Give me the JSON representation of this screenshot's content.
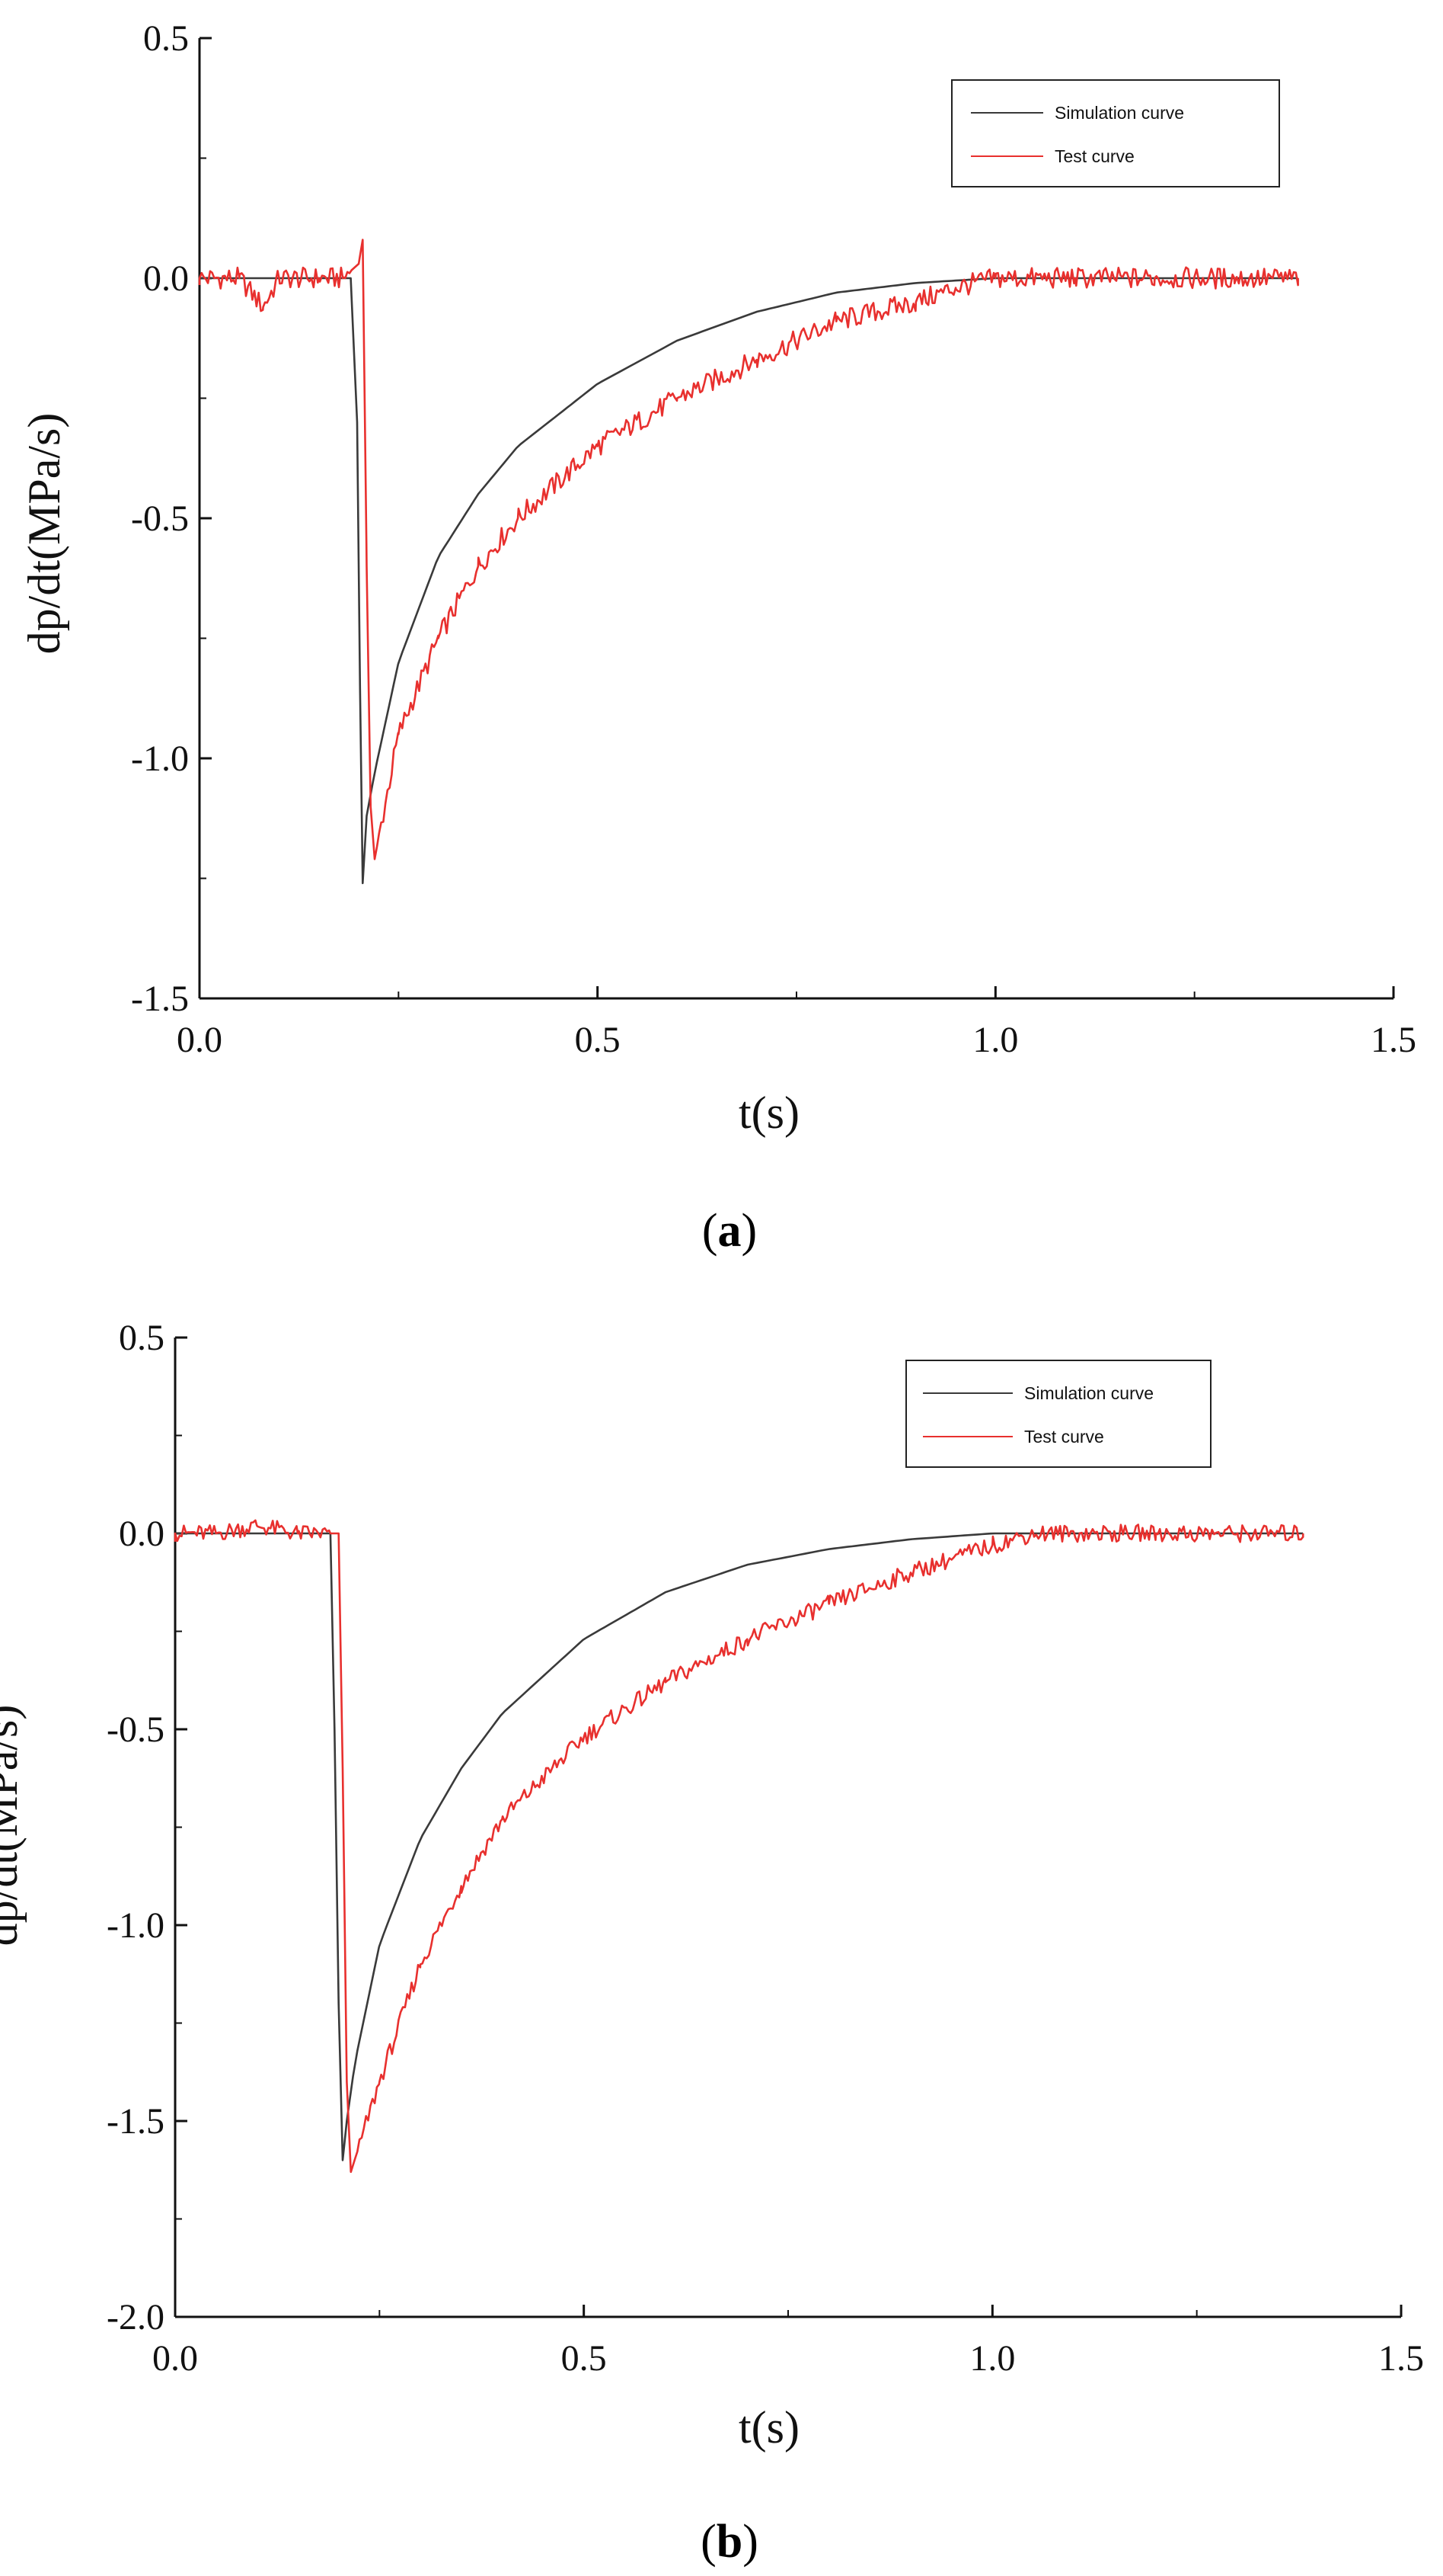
{
  "chart_data": [
    {
      "type": "line",
      "caption_letter": "a",
      "xlabel": "t(s)",
      "ylabel": "dp/dt(MPa/s)",
      "xlim": [
        0.0,
        1.5
      ],
      "ylim": [
        -1.5,
        0.5
      ],
      "x_ticks": [
        "0.0",
        "0.5",
        "1.0",
        "1.5"
      ],
      "y_ticks": [
        "0.5",
        "0.0",
        "-0.5",
        "-1.0",
        "-1.5"
      ],
      "x_tick_values": [
        0.0,
        0.5,
        1.0,
        1.5
      ],
      "y_tick_values": [
        0.5,
        0.0,
        -0.5,
        -1.0,
        -1.5
      ],
      "legend_position": "top-right",
      "series": [
        {
          "name": "Simulation curve",
          "color": "#3a3a3a",
          "x": [
            0.0,
            0.19,
            0.198,
            0.202,
            0.205,
            0.21,
            0.22,
            0.25,
            0.3,
            0.35,
            0.4,
            0.5,
            0.6,
            0.7,
            0.8,
            0.9,
            1.0,
            1.1,
            1.2,
            1.3,
            1.38
          ],
          "y": [
            0.0,
            0.0,
            -0.3,
            -0.9,
            -1.26,
            -1.12,
            -1.03,
            -0.8,
            -0.58,
            -0.45,
            -0.35,
            -0.22,
            -0.13,
            -0.07,
            -0.03,
            -0.01,
            0.0,
            0.0,
            0.0,
            0.0,
            0.0
          ]
        },
        {
          "name": "Test curve",
          "color": "#e8302e",
          "x": [
            0.0,
            0.05,
            0.08,
            0.1,
            0.15,
            0.18,
            0.2,
            0.205,
            0.21,
            0.215,
            0.22,
            0.25,
            0.3,
            0.35,
            0.4,
            0.5,
            0.6,
            0.7,
            0.8,
            0.9,
            0.95,
            1.0,
            1.1,
            1.2,
            1.3,
            1.38
          ],
          "y": [
            0.0,
            0.0,
            -0.06,
            0.0,
            0.0,
            0.0,
            0.03,
            0.08,
            -0.6,
            -1.1,
            -1.21,
            -0.95,
            -0.75,
            -0.6,
            -0.5,
            -0.35,
            -0.25,
            -0.17,
            -0.09,
            -0.05,
            -0.02,
            0.0,
            0.0,
            0.0,
            0.0,
            0.0
          ]
        }
      ]
    },
    {
      "type": "line",
      "caption_letter": "b",
      "xlabel": "t(s)",
      "ylabel": "dp/dt(MPa/s)",
      "xlim": [
        0.0,
        1.5
      ],
      "ylim": [
        -2.0,
        0.5
      ],
      "x_ticks": [
        "0.0",
        "0.5",
        "1.0",
        "1.5"
      ],
      "y_ticks": [
        "0.5",
        "0.0",
        "-0.5",
        "-1.0",
        "-1.5",
        "-2.0"
      ],
      "x_tick_values": [
        0.0,
        0.5,
        1.0,
        1.5
      ],
      "y_tick_values": [
        0.5,
        0.0,
        -0.5,
        -1.0,
        -1.5,
        -2.0
      ],
      "legend_position": "top-right",
      "series": [
        {
          "name": "Simulation curve",
          "color": "#3a3a3a",
          "x": [
            0.0,
            0.19,
            0.195,
            0.2,
            0.205,
            0.21,
            0.22,
            0.25,
            0.3,
            0.35,
            0.4,
            0.5,
            0.6,
            0.7,
            0.8,
            0.9,
            1.0,
            1.1,
            1.2,
            1.3,
            1.38
          ],
          "y": [
            0.0,
            0.0,
            -0.5,
            -1.2,
            -1.6,
            -1.5,
            -1.35,
            -1.05,
            -0.78,
            -0.6,
            -0.46,
            -0.27,
            -0.15,
            -0.08,
            -0.04,
            -0.015,
            0.0,
            0.0,
            0.0,
            0.0,
            0.0
          ]
        },
        {
          "name": "Test curve",
          "color": "#e8302e",
          "x": [
            0.0,
            0.05,
            0.1,
            0.15,
            0.19,
            0.2,
            0.205,
            0.21,
            0.215,
            0.25,
            0.3,
            0.35,
            0.4,
            0.5,
            0.6,
            0.7,
            0.8,
            0.9,
            1.0,
            1.05,
            1.1,
            1.2,
            1.3,
            1.38
          ],
          "y": [
            0.0,
            0.0,
            0.02,
            0.0,
            0.0,
            0.0,
            -0.6,
            -1.4,
            -1.63,
            -1.4,
            -1.1,
            -0.9,
            -0.73,
            -0.52,
            -0.38,
            -0.27,
            -0.18,
            -0.1,
            -0.03,
            0.0,
            0.0,
            0.0,
            0.0,
            0.0
          ]
        }
      ]
    }
  ]
}
